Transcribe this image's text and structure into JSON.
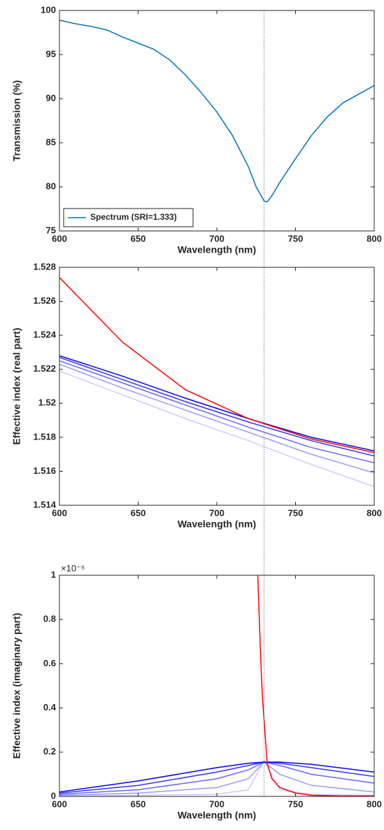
{
  "chart_data": [
    {
      "type": "line",
      "xlabel": "Wavelength (nm)",
      "ylabel": "Transmission (%)",
      "x": [
        600,
        610,
        620,
        630,
        640,
        650,
        660,
        670,
        680,
        690,
        700,
        710,
        720,
        725,
        730,
        732,
        735,
        740,
        750,
        760,
        770,
        780,
        790,
        800
      ],
      "series": [
        {
          "name": "Spectrum (SRI=1.333)",
          "color": "#0072bd",
          "values": [
            98.9,
            98.5,
            98.2,
            97.8,
            97.0,
            96.3,
            95.6,
            94.4,
            92.7,
            90.7,
            88.5,
            85.8,
            82.3,
            80.0,
            78.4,
            78.3,
            79.0,
            80.5,
            83.2,
            85.8,
            87.9,
            89.5,
            90.5,
            91.5
          ]
        }
      ],
      "xlim": [
        600,
        800
      ],
      "xticks": [
        600,
        650,
        700,
        750,
        800
      ],
      "ylim": [
        75,
        100
      ],
      "yticks": [
        75,
        80,
        85,
        90,
        95,
        100
      ],
      "legend": "lower left",
      "vline": 730
    },
    {
      "type": "line",
      "xlabel": "Wavelength (nm)",
      "ylabel": "Effective index (real part)",
      "x": [
        600,
        640,
        680,
        720,
        760,
        800
      ],
      "series": [
        {
          "color": "#ccccff",
          "values": [
            1.5219,
            1.5205,
            1.5191,
            1.5178,
            1.5164,
            1.5151
          ]
        },
        {
          "color": "#9999ff",
          "values": [
            1.5223,
            1.5209,
            1.5196,
            1.5183,
            1.517,
            1.5159
          ]
        },
        {
          "color": "#6666ff",
          "values": [
            1.5225,
            1.5212,
            1.5199,
            1.5186,
            1.5174,
            1.5165
          ]
        },
        {
          "color": "#3333ff",
          "values": [
            1.5227,
            1.5214,
            1.5201,
            1.5189,
            1.5178,
            1.5169
          ]
        },
        {
          "color": "#0000ff",
          "values": [
            1.5228,
            1.5216,
            1.5203,
            1.5191,
            1.518,
            1.5172
          ]
        },
        {
          "color": "#ff0000",
          "values": [
            1.5274,
            1.5236,
            1.5208,
            1.5191,
            1.5179,
            1.5171
          ]
        }
      ],
      "xlim": [
        600,
        800
      ],
      "xticks": [
        600,
        650,
        700,
        750,
        800
      ],
      "ylim": [
        1.514,
        1.528
      ],
      "yticks": [
        1.514,
        1.516,
        1.518,
        1.52,
        1.522,
        1.524,
        1.526,
        1.528
      ]
    },
    {
      "type": "line",
      "xlabel": "Wavelength (nm)",
      "ylabel": "Effective index (imaginary part)",
      "y_exponent": "×10⁻⁵",
      "x": [
        600,
        650,
        700,
        720,
        730,
        740,
        760,
        800
      ],
      "series": [
        {
          "color": "#ccccff",
          "values": [
            0.002,
            0.005,
            0.01,
            0.03,
            0.16,
            0.03,
            0.01,
            0.005
          ]
        },
        {
          "color": "#9999ff",
          "values": [
            0.005,
            0.015,
            0.04,
            0.08,
            0.155,
            0.1,
            0.05,
            0.02
          ]
        },
        {
          "color": "#6666ff",
          "values": [
            0.01,
            0.03,
            0.08,
            0.12,
            0.155,
            0.14,
            0.1,
            0.06
          ]
        },
        {
          "color": "#3333ff",
          "values": [
            0.015,
            0.05,
            0.11,
            0.14,
            0.155,
            0.15,
            0.13,
            0.09
          ]
        },
        {
          "color": "#0000ff",
          "values": [
            0.02,
            0.07,
            0.13,
            0.15,
            0.155,
            0.155,
            0.145,
            0.11
          ]
        },
        {
          "color": "#ff0000",
          "x": [
            726,
            728,
            729,
            730,
            731,
            732,
            735,
            740,
            750,
            760,
            780,
            800
          ],
          "values": [
            1.0,
            0.6,
            0.45,
            0.35,
            0.25,
            0.15,
            0.08,
            0.04,
            0.015,
            0.005,
            0.002,
            0.002
          ]
        }
      ],
      "xlim": [
        600,
        800
      ],
      "xticks": [
        600,
        650,
        700,
        750,
        800
      ],
      "ylim": [
        0,
        1
      ],
      "yticks": [
        0,
        0.2,
        0.4,
        0.6,
        0.8,
        1
      ]
    }
  ]
}
